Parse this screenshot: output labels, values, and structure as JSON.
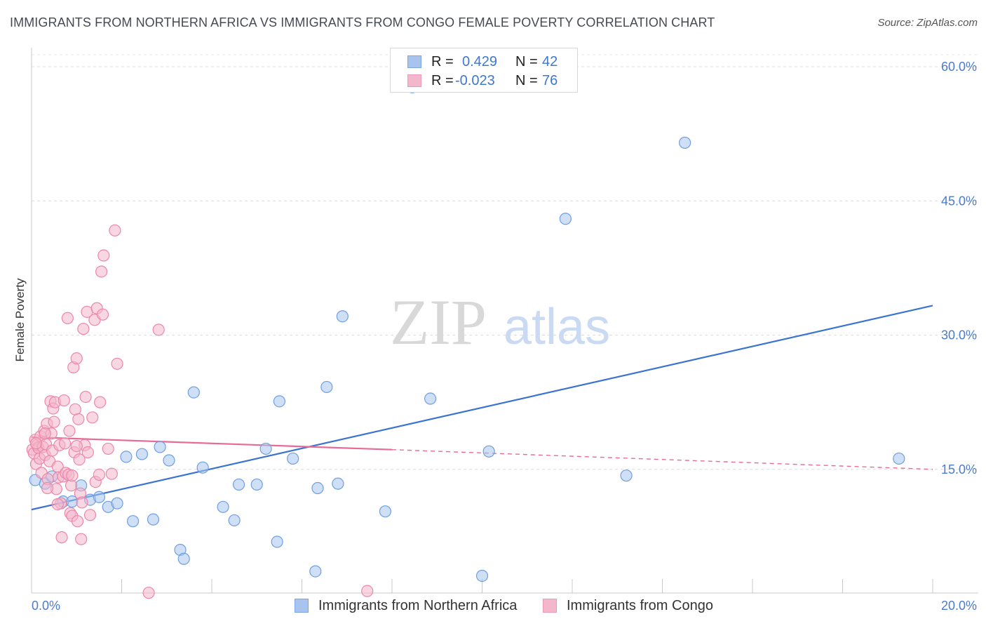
{
  "title": "IMMIGRANTS FROM NORTHERN AFRICA VS IMMIGRANTS FROM CONGO FEMALE POVERTY CORRELATION CHART",
  "source": "Source: ZipAtlas.com",
  "watermark": {
    "zip": "ZIP",
    "atlas": "atlas"
  },
  "legend_stats": [
    {
      "r_label": "R =",
      "r_value": "0.429",
      "n_label": "N =",
      "n_value": "42",
      "color": "#a8c4ee"
    },
    {
      "r_label": "R =",
      "r_value": "-0.023",
      "n_label": "N =",
      "n_value": "76",
      "color": "#f4b6cb"
    }
  ],
  "bottom_legend": [
    {
      "label": "Immigrants from Northern Africa",
      "color": "#a8c4ee"
    },
    {
      "label": "Immigrants from Congo",
      "color": "#f4b6cb"
    }
  ],
  "chart_data": {
    "type": "scatter",
    "title": "IMMIGRANTS FROM NORTHERN AFRICA VS IMMIGRANTS FROM CONGO FEMALE POVERTY CORRELATION CHART",
    "xlabel": "",
    "ylabel": "Female Poverty",
    "xlim": [
      0,
      20
    ],
    "ylim": [
      0,
      60
    ],
    "x_tick_labels": [
      "0.0%",
      "20.0%"
    ],
    "y_ticks": [
      15,
      30,
      45,
      60
    ],
    "y_tick_labels": [
      "15.0%",
      "30.0%",
      "45.0%",
      "60.0%"
    ],
    "grid": true,
    "series": [
      {
        "name": "Immigrants from Northern Africa",
        "color": "#a8c4ee",
        "stroke": "#6f9fe0",
        "trend": {
          "x": [
            0,
            20
          ],
          "y": [
            10.5,
            33.3
          ],
          "color": "#3a74d0"
        },
        "points": [
          [
            0.08,
            13.8
          ],
          [
            0.3,
            13.4
          ],
          [
            0.45,
            14.2
          ],
          [
            0.7,
            11.4
          ],
          [
            0.9,
            11.4
          ],
          [
            1.1,
            13.2
          ],
          [
            1.3,
            11.6
          ],
          [
            1.5,
            11.9
          ],
          [
            1.7,
            10.8
          ],
          [
            1.9,
            11.2
          ],
          [
            2.1,
            16.4
          ],
          [
            2.25,
            9.2
          ],
          [
            2.45,
            16.7
          ],
          [
            2.7,
            9.4
          ],
          [
            2.85,
            17.5
          ],
          [
            3.05,
            16.0
          ],
          [
            3.3,
            6.0
          ],
          [
            3.38,
            5.0
          ],
          [
            3.6,
            23.6
          ],
          [
            3.8,
            15.2
          ],
          [
            4.25,
            10.8
          ],
          [
            4.5,
            9.3
          ],
          [
            4.6,
            13.3
          ],
          [
            5.0,
            13.3
          ],
          [
            5.2,
            17.3
          ],
          [
            5.5,
            22.6
          ],
          [
            5.45,
            6.9
          ],
          [
            5.8,
            16.2
          ],
          [
            6.3,
            3.6
          ],
          [
            6.35,
            12.9
          ],
          [
            6.55,
            24.2
          ],
          [
            6.8,
            13.4
          ],
          [
            6.9,
            32.1
          ],
          [
            7.85,
            10.3
          ],
          [
            8.45,
            57.7
          ],
          [
            8.85,
            22.9
          ],
          [
            10.0,
            3.1
          ],
          [
            10.15,
            17.0
          ],
          [
            11.85,
            43.0
          ],
          [
            13.2,
            14.3
          ],
          [
            14.5,
            51.5
          ],
          [
            19.25,
            16.2
          ]
        ]
      },
      {
        "name": "Immigrants from Congo",
        "color": "#f4b6cb",
        "stroke": "#ec87a8",
        "trend": {
          "x": [
            0,
            8
          ],
          "y": [
            18.6,
            17.2
          ],
          "dash_x": [
            8,
            20
          ],
          "dash_y": [
            17.2,
            15.0
          ],
          "color": "#e76b96"
        },
        "points": [
          [
            0.02,
            17.2
          ],
          [
            0.05,
            16.8
          ],
          [
            0.08,
            18.3
          ],
          [
            0.1,
            15.6
          ],
          [
            0.12,
            17.7
          ],
          [
            0.15,
            17.4
          ],
          [
            0.18,
            16.2
          ],
          [
            0.2,
            18.7
          ],
          [
            0.22,
            14.6
          ],
          [
            0.25,
            17.5
          ],
          [
            0.28,
            19.3
          ],
          [
            0.3,
            16.6
          ],
          [
            0.32,
            17.8
          ],
          [
            0.34,
            20.1
          ],
          [
            0.36,
            13.9
          ],
          [
            0.4,
            15.9
          ],
          [
            0.42,
            22.6
          ],
          [
            0.44,
            19.0
          ],
          [
            0.46,
            17.1
          ],
          [
            0.48,
            21.8
          ],
          [
            0.5,
            20.3
          ],
          [
            0.52,
            22.5
          ],
          [
            0.55,
            12.8
          ],
          [
            0.58,
            15.3
          ],
          [
            0.6,
            14.1
          ],
          [
            0.62,
            17.7
          ],
          [
            0.65,
            11.2
          ],
          [
            0.67,
            7.4
          ],
          [
            0.7,
            14.2
          ],
          [
            0.72,
            22.7
          ],
          [
            0.74,
            17.9
          ],
          [
            0.76,
            14.6
          ],
          [
            0.8,
            31.9
          ],
          [
            0.82,
            14.4
          ],
          [
            0.84,
            19.3
          ],
          [
            0.86,
            10.1
          ],
          [
            0.88,
            13.2
          ],
          [
            0.9,
            9.8
          ],
          [
            0.93,
            26.4
          ],
          [
            0.95,
            16.9
          ],
          [
            0.97,
            21.7
          ],
          [
            1.0,
            27.4
          ],
          [
            1.02,
            9.2
          ],
          [
            1.04,
            20.6
          ],
          [
            1.06,
            16.1
          ],
          [
            1.08,
            12.3
          ],
          [
            1.1,
            7.2
          ],
          [
            1.12,
            11.3
          ],
          [
            1.15,
            30.7
          ],
          [
            1.18,
            17.7
          ],
          [
            1.2,
            23.1
          ],
          [
            1.23,
            32.6
          ],
          [
            1.25,
            16.9
          ],
          [
            1.3,
            9.9
          ],
          [
            1.35,
            20.8
          ],
          [
            1.4,
            31.7
          ],
          [
            1.42,
            13.6
          ],
          [
            1.45,
            33.0
          ],
          [
            1.5,
            14.4
          ],
          [
            1.52,
            22.5
          ],
          [
            1.55,
            37.1
          ],
          [
            1.58,
            32.3
          ],
          [
            1.6,
            38.9
          ],
          [
            1.7,
            17.3
          ],
          [
            1.78,
            14.5
          ],
          [
            1.85,
            41.7
          ],
          [
            1.9,
            26.8
          ],
          [
            2.6,
            1.2
          ],
          [
            2.82,
            30.6
          ],
          [
            7.45,
            1.4
          ],
          [
            0.1,
            17.9
          ],
          [
            0.35,
            12.9
          ],
          [
            0.58,
            11.1
          ],
          [
            0.9,
            14.3
          ],
          [
            1.0,
            17.6
          ],
          [
            0.3,
            19.0
          ]
        ]
      }
    ]
  }
}
